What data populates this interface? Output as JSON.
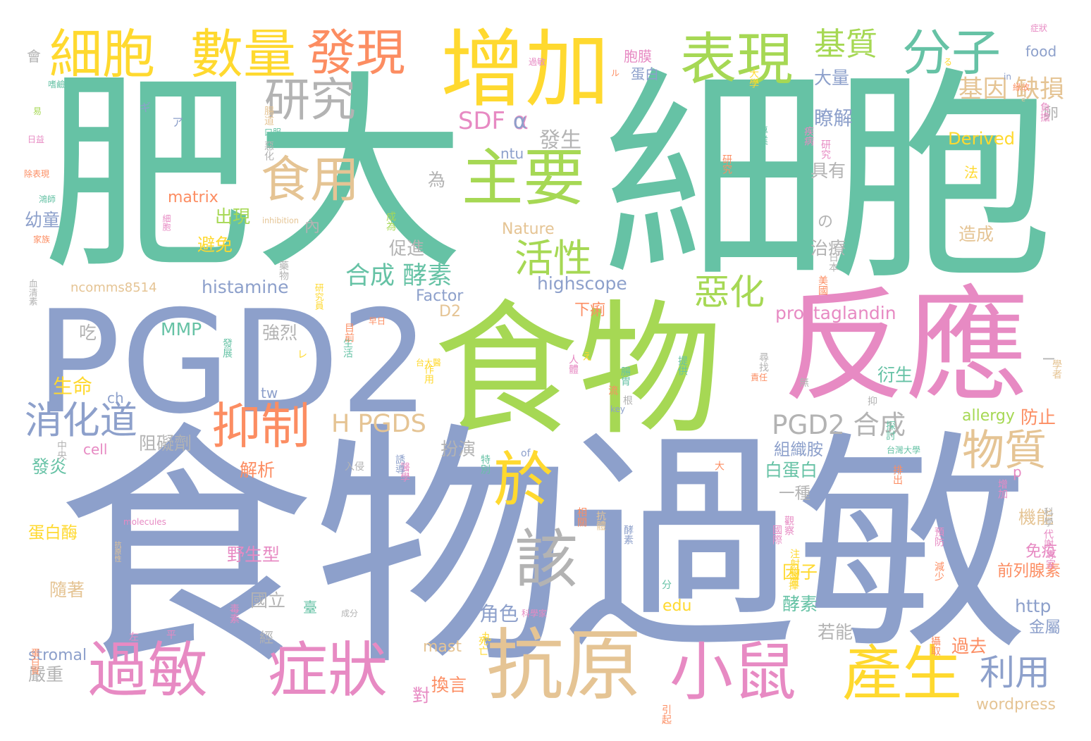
{
  "palette": {
    "teal": "#66c2a5",
    "orange": "#fc8d62",
    "blue": "#8da0cb",
    "pink": "#e78ac3",
    "green": "#a6d854",
    "yellow": "#ffd92f",
    "tan": "#e5c494",
    "gray": "#b3b3b3"
  },
  "words": [
    {
      "text": "肥大",
      "color": "teal"
    },
    {
      "text": "細胞",
      "color": "teal"
    },
    {
      "text": "PGD2",
      "color": "blue"
    },
    {
      "text": "食物",
      "color": "green"
    },
    {
      "text": "反應",
      "color": "pink"
    },
    {
      "text": "食物",
      "color": "blue"
    },
    {
      "text": "過敏",
      "color": "blue"
    },
    {
      "text": "細胞",
      "color": "yellow"
    },
    {
      "text": "數量",
      "color": "yellow"
    },
    {
      "text": "發現",
      "color": "orange"
    },
    {
      "text": "增加",
      "color": "yellow"
    },
    {
      "text": "表現",
      "color": "green"
    },
    {
      "text": "分子",
      "color": "teal"
    },
    {
      "text": "研究",
      "color": "gray"
    },
    {
      "text": "食用",
      "color": "tan"
    },
    {
      "text": "主要",
      "color": "green"
    },
    {
      "text": "基質",
      "color": "green"
    },
    {
      "text": "過敏",
      "color": "pink"
    },
    {
      "text": "症狀",
      "color": "pink"
    },
    {
      "text": "抗原",
      "color": "tan"
    },
    {
      "text": "小鼠",
      "color": "pink"
    },
    {
      "text": "產生",
      "color": "yellow"
    },
    {
      "text": "抑制",
      "color": "orange"
    },
    {
      "text": "消化道",
      "color": "blue"
    },
    {
      "text": "於",
      "color": "yellow"
    },
    {
      "text": "該",
      "color": "gray"
    },
    {
      "text": "活性",
      "color": "green"
    },
    {
      "text": "惡化",
      "color": "green"
    },
    {
      "text": "物質",
      "color": "tan"
    },
    {
      "text": "利用",
      "color": "blue"
    },
    {
      "text": "PGD2 合成",
      "color": "gray"
    },
    {
      "text": "H PGDS",
      "color": "tan"
    },
    {
      "text": "SDF α",
      "color": "pink"
    },
    {
      "text": "合成 酵素",
      "color": "teal"
    },
    {
      "text": "基因 缺損",
      "color": "tan"
    },
    {
      "text": "food",
      "color": "blue"
    },
    {
      "text": "大量",
      "color": "blue"
    },
    {
      "text": "瞭解",
      "color": "blue"
    },
    {
      "text": "Derived",
      "color": "yellow"
    },
    {
      "text": "胞膜",
      "color": "pink"
    },
    {
      "text": "蛋白",
      "color": "blue"
    },
    {
      "text": "發生",
      "color": "gray"
    },
    {
      "text": "ntu",
      "color": "blue"
    },
    {
      "text": "具有",
      "color": "gray"
    },
    {
      "text": "matrix",
      "color": "orange"
    },
    {
      "text": "出現",
      "color": "green"
    },
    {
      "text": "幼童",
      "color": "blue"
    },
    {
      "text": "Nature",
      "color": "tan"
    },
    {
      "text": "避免",
      "color": "yellow"
    },
    {
      "text": "促進",
      "color": "gray"
    },
    {
      "text": "治療",
      "color": "gray"
    },
    {
      "text": "造成",
      "color": "tan"
    },
    {
      "text": "highscope",
      "color": "blue"
    },
    {
      "text": "histamine",
      "color": "blue"
    },
    {
      "text": "ncomms8514",
      "color": "tan"
    },
    {
      "text": "Factor",
      "color": "blue"
    },
    {
      "text": "prostaglandin",
      "color": "pink"
    },
    {
      "text": "D2",
      "color": "tan"
    },
    {
      "text": "下痢",
      "color": "orange"
    },
    {
      "text": "MMP",
      "color": "teal"
    },
    {
      "text": "強烈",
      "color": "gray"
    },
    {
      "text": "吃",
      "color": "gray"
    },
    {
      "text": "生命",
      "color": "yellow"
    },
    {
      "text": "tw",
      "color": "blue"
    },
    {
      "text": "ch",
      "color": "blue"
    },
    {
      "text": "阻礙劑",
      "color": "gray"
    },
    {
      "text": "cell",
      "color": "pink"
    },
    {
      "text": "發炎",
      "color": "teal"
    },
    {
      "text": "解析",
      "color": "orange"
    },
    {
      "text": "扮演",
      "color": "gray"
    },
    {
      "text": "組織胺",
      "color": "blue"
    },
    {
      "text": "白蛋白",
      "color": "teal"
    },
    {
      "text": "一種",
      "color": "gray"
    },
    {
      "text": "防止",
      "color": "orange"
    },
    {
      "text": "allergy",
      "color": "green"
    },
    {
      "text": "衍生",
      "color": "teal"
    },
    {
      "text": "機能",
      "color": "tan"
    },
    {
      "text": "免疫",
      "color": "pink"
    },
    {
      "text": "前列腺素",
      "color": "orange"
    },
    {
      "text": "蛋白酶",
      "color": "yellow"
    },
    {
      "text": "野生型",
      "color": "pink"
    },
    {
      "text": "隨著",
      "color": "tan"
    },
    {
      "text": "角色",
      "color": "blue"
    },
    {
      "text": "國立",
      "color": "gray"
    },
    {
      "text": "因子",
      "color": "yellow"
    },
    {
      "text": "酵素",
      "color": "teal"
    },
    {
      "text": "http",
      "color": "blue"
    },
    {
      "text": "edu",
      "color": "yellow"
    },
    {
      "text": "mast",
      "color": "tan"
    },
    {
      "text": "stromal",
      "color": "blue"
    },
    {
      "text": "嚴重",
      "color": "gray"
    },
    {
      "text": "換言",
      "color": "orange"
    },
    {
      "text": "對",
      "color": "pink"
    },
    {
      "text": "過去",
      "color": "orange"
    },
    {
      "text": "金屬",
      "color": "blue"
    },
    {
      "text": "若能",
      "color": "gray"
    },
    {
      "text": "wordpress",
      "color": "tan"
    },
    {
      "text": "為",
      "color": "gray"
    },
    {
      "text": "內",
      "color": "gray"
    },
    {
      "text": "の",
      "color": "gray"
    },
    {
      "text": "α",
      "color": "blue"
    },
    {
      "text": "p",
      "color": "pink"
    },
    {
      "text": "卵",
      "color": "gray"
    },
    {
      "text": "法",
      "color": "yellow"
    },
    {
      "text": "會",
      "color": "gray"
    },
    {
      "text": "臺",
      "color": "teal"
    },
    {
      "text": "經",
      "color": "gray"
    },
    {
      "text": "ー",
      "color": "gray"
    }
  ],
  "small_words": [
    {
      "text": "症狀",
      "color": "pink"
    },
    {
      "text": "緣故",
      "color": "orange"
    },
    {
      "text": "in",
      "color": "blue"
    },
    {
      "text": "る",
      "color": "yellow"
    },
    {
      "text": "ル",
      "color": "orange"
    },
    {
      "text": "過敏",
      "color": "pink"
    },
    {
      "text": "嗜鹼",
      "color": "teal"
    },
    {
      "text": "ギ",
      "color": "blue"
    },
    {
      "text": "易",
      "color": "green"
    },
    {
      "text": "日益",
      "color": "pink"
    },
    {
      "text": "除表現",
      "color": "orange"
    },
    {
      "text": "鴻師",
      "color": "teal"
    },
    {
      "text": "家族",
      "color": "orange"
    },
    {
      "text": "ア",
      "color": "blue"
    },
    {
      "text": "口服",
      "color": "teal"
    },
    {
      "text": "腸道",
      "color": "tan"
    },
    {
      "text": "惡化",
      "color": "gray"
    },
    {
      "text": "疾病",
      "color": "pink"
    },
    {
      "text": "研究",
      "color": "pink"
    },
    {
      "text": "專業",
      "color": "teal"
    },
    {
      "text": "研究",
      "color": "orange"
    },
    {
      "text": "inhibition",
      "color": "tan"
    },
    {
      "text": "細胞",
      "color": "pink"
    },
    {
      "text": "成為",
      "color": "green"
    },
    {
      "text": "大學",
      "color": "yellow"
    },
    {
      "text": "早日",
      "color": "orange"
    },
    {
      "text": "藥物",
      "color": "gray"
    },
    {
      "text": "生活",
      "color": "teal"
    },
    {
      "text": "負擔",
      "color": "pink"
    },
    {
      "text": "The",
      "color": "tan"
    },
    {
      "text": "研究員",
      "color": "yellow"
    },
    {
      "text": "責任",
      "color": "orange"
    },
    {
      "text": "key",
      "color": "blue"
    },
    {
      "text": "of",
      "color": "blue"
    },
    {
      "text": "molecules",
      "color": "pink"
    },
    {
      "text": "台灣大學",
      "color": "teal"
    },
    {
      "text": "學者",
      "color": "tan"
    },
    {
      "text": "代謝",
      "color": "pink"
    },
    {
      "text": "醫學",
      "color": "pink"
    },
    {
      "text": "成分",
      "color": "gray"
    },
    {
      "text": "血清素",
      "color": "gray"
    },
    {
      "text": "人體",
      "color": "pink"
    },
    {
      "text": "台大醫",
      "color": "yellow"
    },
    {
      "text": "尋找",
      "color": "gray"
    },
    {
      "text": "抗體",
      "color": "tan"
    },
    {
      "text": "減少",
      "color": "orange"
    },
    {
      "text": "觀察",
      "color": "pink"
    },
    {
      "text": "科學",
      "color": "gray"
    },
    {
      "text": "專家",
      "color": "pink"
    },
    {
      "text": "引起",
      "color": "orange"
    },
    {
      "text": "注射",
      "color": "yellow"
    },
    {
      "text": "物質",
      "color": "yellow"
    },
    {
      "text": "發揮",
      "color": "yellow"
    },
    {
      "text": "攝取",
      "color": "orange"
    },
    {
      "text": "死亡",
      "color": "yellow"
    },
    {
      "text": "大",
      "color": "orange"
    },
    {
      "text": "え",
      "color": "yellow"
    },
    {
      "text": "レ",
      "color": "yellow"
    },
    {
      "text": "分",
      "color": "teal"
    },
    {
      "text": "無",
      "color": "gray"
    },
    {
      "text": "平",
      "color": "pink"
    },
    {
      "text": "丸",
      "color": "yellow"
    },
    {
      "text": "左",
      "color": "pink"
    },
    {
      "text": "入侵",
      "color": "gray"
    },
    {
      "text": "誘導",
      "color": "blue"
    },
    {
      "text": "作用",
      "color": "yellow"
    },
    {
      "text": "中央",
      "color": "gray"
    },
    {
      "text": "排出",
      "color": "orange"
    },
    {
      "text": "蛋白質",
      "color": "orange"
    },
    {
      "text": "毒素",
      "color": "pink"
    },
    {
      "text": "探討",
      "color": "teal"
    },
    {
      "text": "日本",
      "color": "gray"
    },
    {
      "text": "國際",
      "color": "pink"
    },
    {
      "text": "抗原性",
      "color": "tan"
    },
    {
      "text": "腸胃",
      "color": "teal"
    },
    {
      "text": "目前",
      "color": "orange"
    },
    {
      "text": "特別",
      "color": "teal"
    },
    {
      "text": "預防",
      "color": "pink"
    },
    {
      "text": "抑",
      "color": "gray"
    },
    {
      "text": "根",
      "color": "gray"
    },
    {
      "text": "流",
      "color": "orange"
    },
    {
      "text": "美國",
      "color": "orange"
    },
    {
      "text": "提供",
      "color": "teal"
    },
    {
      "text": "酵素",
      "color": "blue"
    },
    {
      "text": "增加",
      "color": "pink"
    },
    {
      "text": "相關",
      "color": "orange"
    },
    {
      "text": "科學家",
      "color": "pink"
    },
    {
      "text": "發展",
      "color": "teal"
    }
  ]
}
